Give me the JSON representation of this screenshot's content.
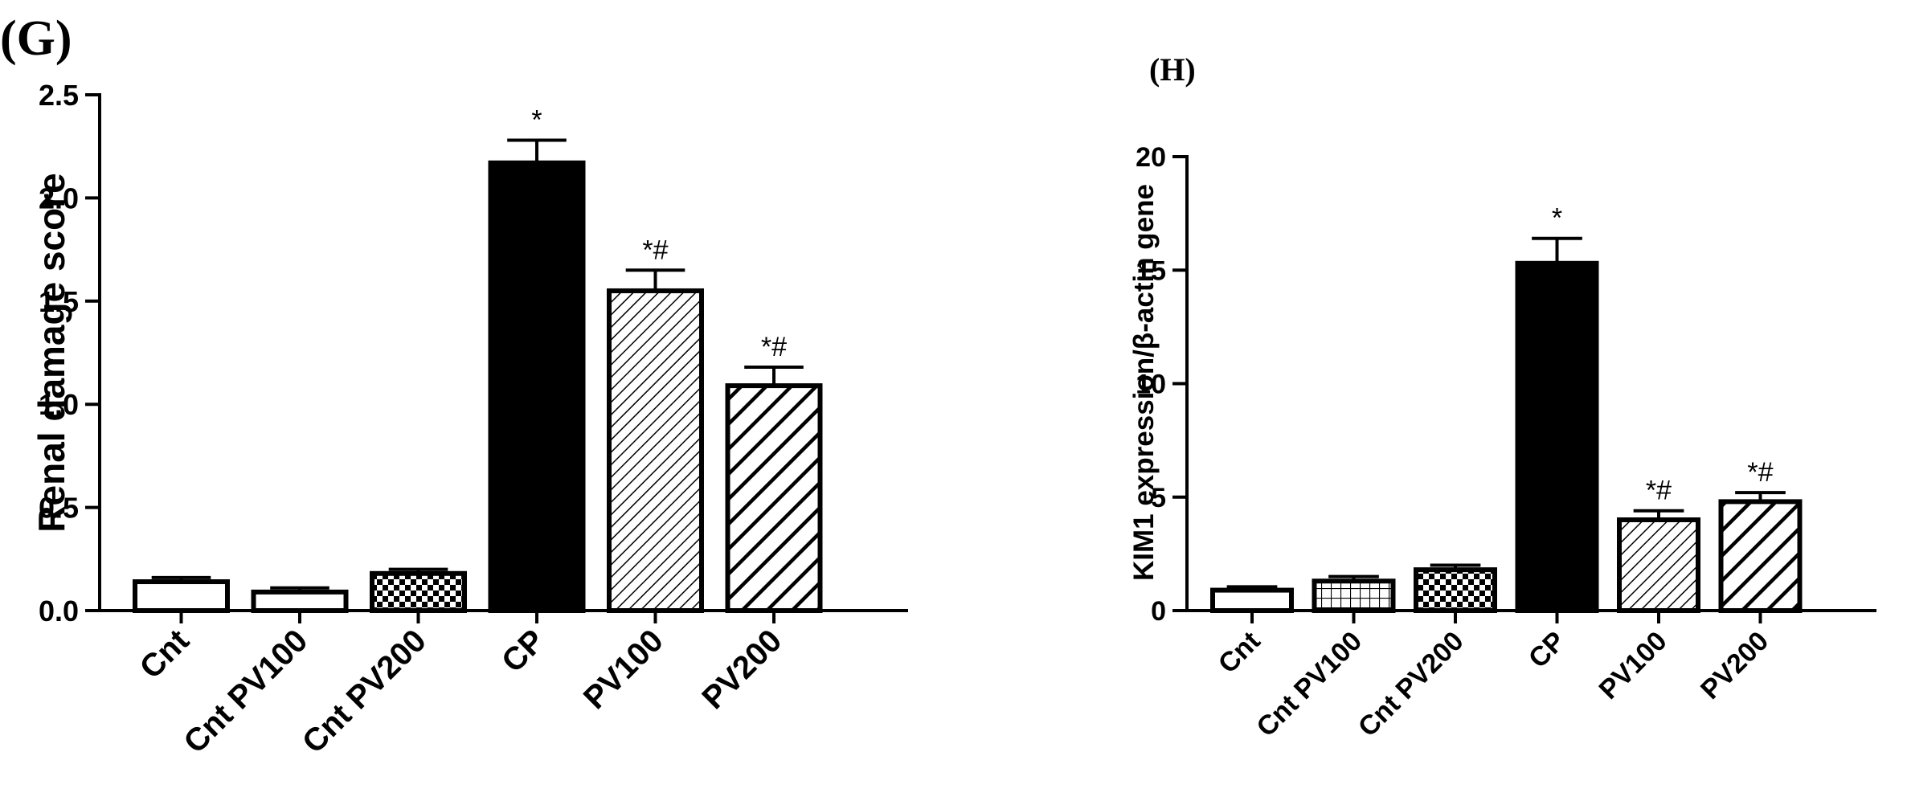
{
  "chart_data": [
    {
      "type": "bar",
      "panel_label": "(G)",
      "ylabel": "Renal damage score",
      "ylim": [
        0,
        2.5
      ],
      "yticks": [
        "0.0",
        "0.5",
        "1.0",
        "1.5",
        "2.0",
        "2.5"
      ],
      "categories": [
        "Cnt",
        "Cnt PV100",
        "Cnt PV200",
        "CP",
        "PV100",
        "PV200"
      ],
      "values": [
        0.14,
        0.09,
        0.18,
        2.17,
        1.55,
        1.09
      ],
      "errors": [
        0.02,
        0.02,
        0.02,
        0.11,
        0.1,
        0.09
      ],
      "annotations": [
        "",
        "",
        "",
        "*",
        "*#",
        "*#"
      ],
      "patterns": [
        "white",
        "white",
        "checker",
        "solid",
        "hatch-thin",
        "hatch-bold"
      ]
    },
    {
      "type": "bar",
      "panel_label": "(H)",
      "ylabel": "KIM1 expression/β-actin gene",
      "ylim": [
        0,
        20
      ],
      "yticks": [
        "0",
        "5",
        "10",
        "15",
        "20"
      ],
      "categories": [
        "Cnt",
        "Cnt PV100",
        "Cnt PV200",
        "CP",
        "PV100",
        "PV200"
      ],
      "values": [
        0.9,
        1.3,
        1.8,
        15.3,
        4.0,
        4.8
      ],
      "errors": [
        0.15,
        0.2,
        0.2,
        1.1,
        0.4,
        0.4
      ],
      "annotations": [
        "",
        "",
        "",
        "*",
        "*#",
        "*#"
      ],
      "patterns": [
        "white",
        "grid",
        "checker",
        "solid",
        "hatch-thin",
        "hatch-bold"
      ]
    }
  ]
}
